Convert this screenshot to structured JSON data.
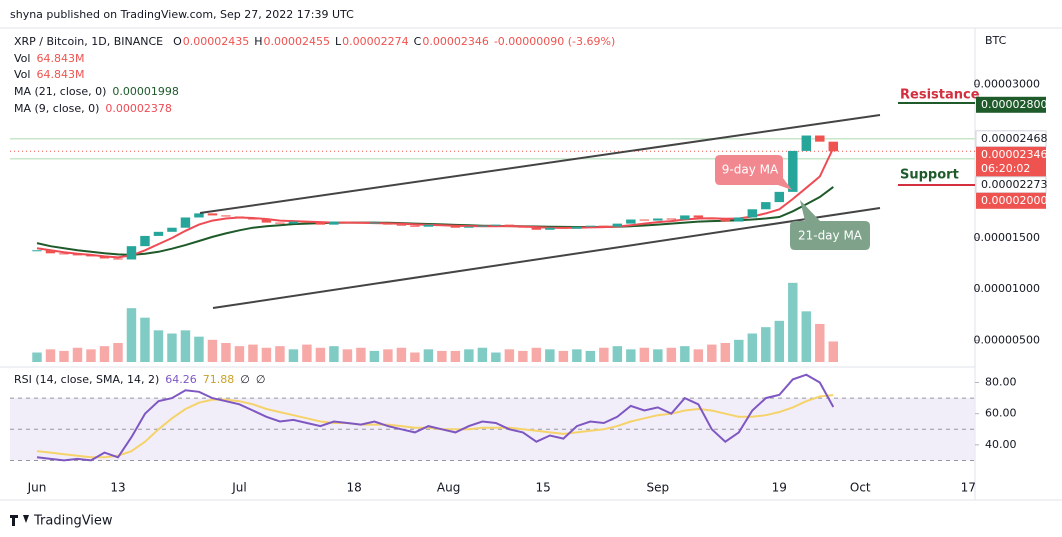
{
  "header": {
    "publisher": "shyna published on TradingView.com, Sep 27, 2022 17:39 UTC"
  },
  "chart_data": {
    "type": "candlestick",
    "symbol": "XRP / Bitcoin, 1D, BINANCE",
    "ohlc": [
      {
        "key": "O",
        "value": "0.00002435"
      },
      {
        "key": "H",
        "value": "0.00002455"
      },
      {
        "key": "L",
        "value": "0.00002274"
      },
      {
        "key": "C",
        "value": "0.00002346"
      }
    ],
    "change": "-0.00000090 (-3.69%)",
    "currency": "BTC",
    "up_color": "#26a69a",
    "down_color": "#ef5350",
    "x": [
      "06-01",
      "06-03",
      "06-05",
      "06-07",
      "06-09",
      "06-11",
      "06-13",
      "06-15",
      "06-17",
      "06-19",
      "06-21",
      "06-23",
      "06-25",
      "06-27",
      "06-29",
      "07-01",
      "07-03",
      "07-05",
      "07-07",
      "07-09",
      "07-11",
      "07-13",
      "07-15",
      "07-17",
      "07-19",
      "07-21",
      "07-23",
      "07-25",
      "07-27",
      "07-29",
      "07-31",
      "08-02",
      "08-04",
      "08-06",
      "08-08",
      "08-10",
      "08-12",
      "08-14",
      "08-16",
      "08-18",
      "08-20",
      "08-22",
      "08-24",
      "08-26",
      "08-28",
      "08-30",
      "09-01",
      "09-03",
      "09-05",
      "09-07",
      "09-09",
      "09-11",
      "09-13",
      "09-15",
      "09-17",
      "09-19",
      "09-21",
      "09-23",
      "09-25",
      "09-27"
    ],
    "close": [
      1.38e-05,
      1.35e-05,
      1.34e-05,
      1.33e-05,
      1.32e-05,
      1.3e-05,
      1.29e-05,
      1.42e-05,
      1.52e-05,
      1.56e-05,
      1.6e-05,
      1.7e-05,
      1.74e-05,
      1.72e-05,
      1.71e-05,
      1.69e-05,
      1.68e-05,
      1.65e-05,
      1.64e-05,
      1.66e-05,
      1.65e-05,
      1.63e-05,
      1.66e-05,
      1.65e-05,
      1.64e-05,
      1.65e-05,
      1.63e-05,
      1.62e-05,
      1.61e-05,
      1.63e-05,
      1.62e-05,
      1.6e-05,
      1.61e-05,
      1.62e-05,
      1.63e-05,
      1.61e-05,
      1.6e-05,
      1.58e-05,
      1.6e-05,
      1.59e-05,
      1.61e-05,
      1.62e-05,
      1.61e-05,
      1.64e-05,
      1.68e-05,
      1.67e-05,
      1.69e-05,
      1.68e-05,
      1.72e-05,
      1.7e-05,
      1.68e-05,
      1.66e-05,
      1.7e-05,
      1.78e-05,
      1.85e-05,
      1.95e-05,
      2.35e-05,
      2.5e-05,
      2.44e-05,
      2.346e-05
    ],
    "series": [
      {
        "name": "MA (21, close, 0)",
        "label": "0.00001998",
        "color": "#1e5a2a",
        "values": [
          1.45e-05,
          1.42e-05,
          1.4e-05,
          1.38e-05,
          1.365e-05,
          1.35e-05,
          1.34e-05,
          1.335e-05,
          1.345e-05,
          1.365e-05,
          1.395e-05,
          1.43e-05,
          1.47e-05,
          1.51e-05,
          1.545e-05,
          1.575e-05,
          1.6e-05,
          1.615e-05,
          1.625e-05,
          1.635e-05,
          1.64e-05,
          1.645e-05,
          1.648e-05,
          1.65e-05,
          1.65e-05,
          1.65e-05,
          1.648e-05,
          1.645e-05,
          1.64e-05,
          1.636e-05,
          1.632e-05,
          1.628e-05,
          1.624e-05,
          1.62e-05,
          1.618e-05,
          1.616e-05,
          1.614e-05,
          1.612e-05,
          1.61e-05,
          1.608e-05,
          1.607e-05,
          1.607e-05,
          1.608e-05,
          1.61e-05,
          1.615e-05,
          1.622e-05,
          1.63e-05,
          1.64e-05,
          1.65e-05,
          1.66e-05,
          1.665e-05,
          1.668e-05,
          1.672e-05,
          1.68e-05,
          1.69e-05,
          1.705e-05,
          1.76e-05,
          1.83e-05,
          1.9e-05,
          1.998e-05
        ]
      },
      {
        "name": "MA (9, close, 0)",
        "label": "0.00002378",
        "color": "#ef4b55",
        "values": [
          1.4e-05,
          1.38e-05,
          1.36e-05,
          1.345e-05,
          1.335e-05,
          1.32e-05,
          1.31e-05,
          1.33e-05,
          1.38e-05,
          1.44e-05,
          1.5e-05,
          1.57e-05,
          1.63e-05,
          1.67e-05,
          1.69e-05,
          1.7e-05,
          1.695e-05,
          1.685e-05,
          1.67e-05,
          1.665e-05,
          1.66e-05,
          1.655e-05,
          1.65e-05,
          1.65e-05,
          1.648e-05,
          1.645e-05,
          1.642e-05,
          1.638e-05,
          1.632e-05,
          1.628e-05,
          1.625e-05,
          1.62e-05,
          1.616e-05,
          1.614e-05,
          1.615e-05,
          1.616e-05,
          1.612e-05,
          1.606e-05,
          1.6e-05,
          1.598e-05,
          1.6e-05,
          1.603e-05,
          1.606e-05,
          1.612e-05,
          1.625e-05,
          1.64e-05,
          1.655e-05,
          1.665e-05,
          1.68e-05,
          1.69e-05,
          1.692e-05,
          1.688e-05,
          1.69e-05,
          1.71e-05,
          1.74e-05,
          1.78e-05,
          1.88e-05,
          1.99e-05,
          2.1e-05,
          2.378e-05
        ]
      }
    ],
    "volume": {
      "name": "Vol",
      "label": "64.843M",
      "vlim": [
        0,
        300
      ],
      "values": [
        30,
        40,
        35,
        45,
        40,
        50,
        60,
        170,
        140,
        100,
        90,
        100,
        80,
        70,
        60,
        50,
        55,
        45,
        50,
        40,
        55,
        45,
        50,
        40,
        45,
        35,
        40,
        45,
        30,
        40,
        35,
        35,
        40,
        45,
        30,
        40,
        35,
        45,
        40,
        35,
        40,
        35,
        45,
        50,
        40,
        45,
        40,
        45,
        50,
        40,
        55,
        60,
        70,
        90,
        110,
        130,
        250,
        160,
        120,
        64.843
      ]
    },
    "ylim": [
      2.6e-06,
      3.53e-05
    ],
    "yticks": [
      {
        "value": 3e-05,
        "label": "0.00003000"
      },
      {
        "value": 1.5e-05,
        "label": "0.00001500"
      },
      {
        "value": 1e-05,
        "label": "0.00001000"
      },
      {
        "value": 5e-06,
        "label": "0.00000500"
      }
    ],
    "price_tags": [
      {
        "value": 2.8e-05,
        "label": "0.00002800",
        "color": "#1e5a2a"
      },
      {
        "value": 2.468e-05,
        "label": "0.00002468",
        "color": "#ffffff"
      },
      {
        "value": 2.346e-05,
        "label": "0.00002346",
        "timer": "06:20:02",
        "color": "#ef5350"
      },
      {
        "value": 2.273e-05,
        "label": "0.00002273",
        "color": "#ffffff"
      },
      {
        "value": 2e-05,
        "label": "0.00002000",
        "color": "#ef5350"
      }
    ],
    "xlim": [
      "05-28",
      "10-18"
    ],
    "xticks": [
      {
        "value": "06-01",
        "label": "Jun"
      },
      {
        "value": "06-13",
        "label": "13"
      },
      {
        "value": "07-01",
        "label": "Jul"
      },
      {
        "value": "07-18",
        "label": "18"
      },
      {
        "value": "08-01",
        "label": "Aug"
      },
      {
        "value": "08-15",
        "label": "15"
      },
      {
        "value": "09-01",
        "label": "Sep"
      },
      {
        "value": "09-19",
        "label": "19"
      },
      {
        "value": "10-01",
        "label": "Oct"
      },
      {
        "value": "10-17",
        "label": "17"
      }
    ],
    "annotations": {
      "resistance": "Resistance",
      "support": "Support",
      "ma9": "9-day MA",
      "ma21": "21-day MA"
    },
    "rsi": {
      "name": "RSI (14, close, SMA, 14, 2)",
      "label": "64.26",
      "ma_label": "71.88",
      "extra": [
        "∅",
        "∅"
      ],
      "color": "#7e57c2",
      "ma_color": "#f5d36a",
      "ylim": [
        29,
        88
      ],
      "yticks": [
        {
          "value": 80,
          "label": "80.00"
        },
        {
          "value": 60,
          "label": "60.00"
        },
        {
          "value": 40,
          "label": "40.00"
        }
      ],
      "levels": [
        70,
        50,
        30
      ],
      "values": [
        32,
        31,
        30,
        31,
        30,
        35,
        32,
        45,
        60,
        68,
        70,
        75,
        74,
        70,
        68,
        66,
        62,
        58,
        55,
        56,
        54,
        52,
        55,
        54,
        53,
        55,
        52,
        50,
        48,
        52,
        50,
        48,
        52,
        55,
        54,
        50,
        48,
        42,
        46,
        44,
        52,
        55,
        54,
        58,
        65,
        62,
        64,
        60,
        70,
        66,
        50,
        42,
        48,
        62,
        70,
        72,
        82,
        85,
        80,
        64.26
      ],
      "ma": [
        36,
        35,
        34,
        33,
        32,
        32,
        33,
        36,
        42,
        50,
        57,
        63,
        67,
        69,
        69,
        68,
        66,
        63,
        61,
        59,
        57,
        55,
        54,
        54,
        53,
        53,
        53,
        52,
        51,
        51,
        50,
        50,
        50,
        51,
        51,
        51,
        50,
        49,
        48,
        47,
        48,
        49,
        50,
        52,
        55,
        57,
        59,
        60,
        62,
        63,
        62,
        60,
        58,
        58,
        59,
        61,
        64,
        68,
        71,
        71.88
      ]
    }
  },
  "footer": {
    "brand": "TradingView"
  }
}
